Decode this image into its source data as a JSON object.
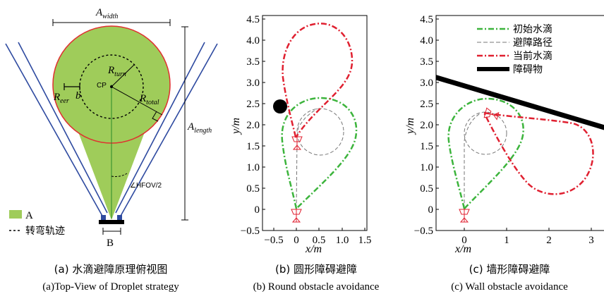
{
  "colors": {
    "droplet_fill": "#9fcc5a",
    "droplet_border": "#e03030",
    "arm": "#2e4aa0",
    "initial": "#3cb43c",
    "current": "#e02030",
    "path": "#777777",
    "obstacle": "#000000"
  },
  "panel_a": {
    "labels": {
      "a_width": "A",
      "a_width_sub": "width",
      "a_length": "A",
      "a_length_sub": "length",
      "r_turn": "R",
      "r_turn_sub": "turn",
      "r_eer": "R",
      "r_eer_sub": "eer",
      "b_small": "b",
      "r_total": "R",
      "r_total_sub": "total",
      "cp": "CP",
      "hfov": "∠HFOV/2",
      "legend_a": "A",
      "legend_turn": "转弯轨迹",
      "b_big": "B"
    },
    "caption_cn": "(a) 水滴避障原理俯视图",
    "caption_en": "(a)Top-View of Droplet strategy"
  },
  "panel_b": {
    "xlabel": "x/m",
    "ylabel": "y/m",
    "xticks": [
      "−0.5",
      "0",
      "0.5",
      "1.0",
      "1.5"
    ],
    "yticks": [
      "−0.5",
      "0",
      "0.5",
      "1.0",
      "1.5",
      "2.0",
      "2.5",
      "3.0",
      "3.5",
      "4.0",
      "4.5"
    ],
    "caption_cn": "(b) 圆形障碍避障",
    "caption_en": "(b) Round obstacle avoidance"
  },
  "panel_c": {
    "xlabel": "x/m",
    "ylabel": "y/m",
    "xticks": [
      "0",
      "1",
      "2",
      "3"
    ],
    "yticks": [
      "−0.5",
      "0",
      "0.5",
      "1.0",
      "1.5",
      "2.0",
      "2.5",
      "3.0",
      "3.5",
      "4.0",
      "4.5"
    ],
    "legend": [
      "初始水滴",
      "避障路径",
      "当前水滴",
      "障碍物"
    ],
    "caption_cn": "(c) 墙形障碍避障",
    "caption_en": "(c) Wall obstacle avoidance"
  }
}
